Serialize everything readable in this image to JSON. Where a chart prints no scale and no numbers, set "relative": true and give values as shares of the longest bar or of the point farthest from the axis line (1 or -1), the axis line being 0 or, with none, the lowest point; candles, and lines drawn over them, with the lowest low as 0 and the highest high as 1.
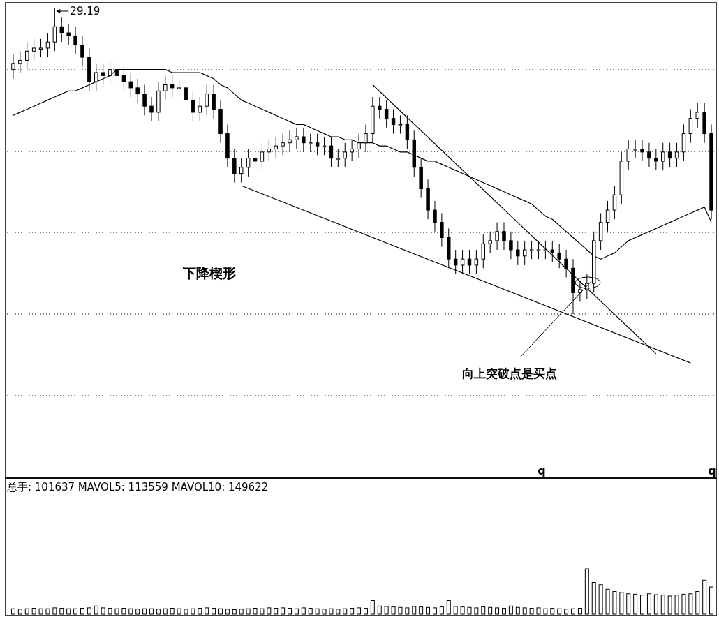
{
  "chart_data": [
    {
      "type": "candlestick",
      "relative": true,
      "grid": true,
      "categories": [
        null,
        null,
        null,
        null,
        null,
        null,
        null,
        null,
        null,
        null,
        null,
        null,
        null,
        null,
        null,
        null,
        null,
        null,
        null,
        null,
        null,
        null,
        null,
        null,
        null,
        null,
        null,
        null,
        null,
        null,
        null,
        null,
        null,
        null,
        null,
        null,
        null,
        null,
        null,
        null,
        null,
        null,
        null,
        null,
        null,
        null,
        null,
        null,
        null,
        null,
        null,
        null,
        null,
        null,
        null,
        null,
        null,
        null,
        null,
        null,
        null,
        null,
        null,
        null,
        null,
        null,
        null,
        null,
        null,
        null,
        null,
        null,
        null,
        null,
        null,
        null,
        null,
        null,
        null,
        null,
        null,
        null,
        null,
        null,
        null,
        null,
        null,
        null,
        null,
        null,
        null,
        null,
        null,
        null,
        null,
        null,
        null,
        null,
        null,
        null,
        null,
        null
      ],
      "ohlc": [
        [
          0.8,
          0.85,
          0.77,
          0.82
        ],
        [
          0.82,
          0.86,
          0.79,
          0.83
        ],
        [
          0.83,
          0.89,
          0.8,
          0.86
        ],
        [
          0.86,
          0.9,
          0.83,
          0.87
        ],
        [
          0.87,
          0.9,
          0.84,
          0.87
        ],
        [
          0.87,
          0.92,
          0.84,
          0.89
        ],
        [
          0.89,
          1.0,
          0.86,
          0.94
        ],
        [
          0.94,
          0.97,
          0.89,
          0.92
        ],
        [
          0.92,
          0.95,
          0.88,
          0.91
        ],
        [
          0.91,
          0.94,
          0.85,
          0.88
        ],
        [
          0.88,
          0.91,
          0.81,
          0.84
        ],
        [
          0.84,
          0.87,
          0.73,
          0.76
        ],
        [
          0.76,
          0.82,
          0.73,
          0.79
        ],
        [
          0.79,
          0.82,
          0.75,
          0.78
        ],
        [
          0.78,
          0.83,
          0.75,
          0.8
        ],
        [
          0.8,
          0.83,
          0.75,
          0.78
        ],
        [
          0.78,
          0.81,
          0.73,
          0.76
        ],
        [
          0.76,
          0.79,
          0.71,
          0.74
        ],
        [
          0.74,
          0.77,
          0.69,
          0.72
        ],
        [
          0.72,
          0.75,
          0.65,
          0.68
        ],
        [
          0.68,
          0.71,
          0.63,
          0.66
        ],
        [
          0.66,
          0.76,
          0.63,
          0.73
        ],
        [
          0.73,
          0.78,
          0.7,
          0.75
        ],
        [
          0.75,
          0.78,
          0.71,
          0.74
        ],
        [
          0.74,
          0.77,
          0.71,
          0.74
        ],
        [
          0.74,
          0.77,
          0.67,
          0.7
        ],
        [
          0.7,
          0.73,
          0.63,
          0.66
        ],
        [
          0.66,
          0.71,
          0.63,
          0.68
        ],
        [
          0.68,
          0.75,
          0.65,
          0.72
        ],
        [
          0.72,
          0.75,
          0.64,
          0.67
        ],
        [
          0.67,
          0.7,
          0.56,
          0.59
        ],
        [
          0.59,
          0.62,
          0.48,
          0.51
        ],
        [
          0.51,
          0.54,
          0.43,
          0.46
        ],
        [
          0.46,
          0.51,
          0.43,
          0.48
        ],
        [
          0.48,
          0.54,
          0.45,
          0.51
        ],
        [
          0.51,
          0.54,
          0.47,
          0.5
        ],
        [
          0.5,
          0.56,
          0.47,
          0.53
        ],
        [
          0.53,
          0.57,
          0.5,
          0.54
        ],
        [
          0.54,
          0.58,
          0.51,
          0.55
        ],
        [
          0.55,
          0.59,
          0.52,
          0.56
        ],
        [
          0.56,
          0.6,
          0.53,
          0.57
        ],
        [
          0.57,
          0.61,
          0.54,
          0.58
        ],
        [
          0.58,
          0.61,
          0.53,
          0.56
        ],
        [
          0.56,
          0.59,
          0.53,
          0.56
        ],
        [
          0.56,
          0.59,
          0.52,
          0.55
        ],
        [
          0.55,
          0.58,
          0.52,
          0.55
        ],
        [
          0.55,
          0.58,
          0.48,
          0.51
        ],
        [
          0.51,
          0.54,
          0.48,
          0.51
        ],
        [
          0.51,
          0.56,
          0.48,
          0.53
        ],
        [
          0.53,
          0.57,
          0.5,
          0.54
        ],
        [
          0.54,
          0.59,
          0.51,
          0.56
        ],
        [
          0.56,
          0.62,
          0.53,
          0.59
        ],
        [
          0.59,
          0.71,
          0.56,
          0.68
        ],
        [
          0.68,
          0.71,
          0.64,
          0.67
        ],
        [
          0.67,
          0.7,
          0.61,
          0.64
        ],
        [
          0.64,
          0.67,
          0.59,
          0.62
        ],
        [
          0.62,
          0.65,
          0.59,
          0.62
        ],
        [
          0.62,
          0.65,
          0.54,
          0.57
        ],
        [
          0.57,
          0.6,
          0.45,
          0.48
        ],
        [
          0.48,
          0.51,
          0.38,
          0.41
        ],
        [
          0.41,
          0.44,
          0.31,
          0.34
        ],
        [
          0.34,
          0.37,
          0.27,
          0.3
        ],
        [
          0.3,
          0.33,
          0.22,
          0.25
        ],
        [
          0.25,
          0.28,
          0.15,
          0.18
        ],
        [
          0.18,
          0.21,
          0.13,
          0.16
        ],
        [
          0.16,
          0.21,
          0.13,
          0.18
        ],
        [
          0.18,
          0.21,
          0.13,
          0.16
        ],
        [
          0.16,
          0.21,
          0.13,
          0.18
        ],
        [
          0.18,
          0.26,
          0.15,
          0.23
        ],
        [
          0.23,
          0.27,
          0.2,
          0.24
        ],
        [
          0.24,
          0.3,
          0.21,
          0.27
        ],
        [
          0.27,
          0.3,
          0.21,
          0.24
        ],
        [
          0.24,
          0.27,
          0.18,
          0.21
        ],
        [
          0.21,
          0.24,
          0.16,
          0.19
        ],
        [
          0.19,
          0.24,
          0.16,
          0.21
        ],
        [
          0.21,
          0.24,
          0.18,
          0.21
        ],
        [
          0.21,
          0.24,
          0.18,
          0.21
        ],
        [
          0.21,
          0.24,
          0.18,
          0.21
        ],
        [
          0.21,
          0.24,
          0.17,
          0.2
        ],
        [
          0.2,
          0.23,
          0.15,
          0.18
        ],
        [
          0.18,
          0.21,
          0.12,
          0.15
        ],
        [
          0.15,
          0.18,
          0.0,
          0.07
        ],
        [
          0.07,
          0.11,
          0.04,
          0.08
        ],
        [
          0.08,
          0.13,
          0.05,
          0.1
        ],
        [
          0.1,
          0.27,
          0.07,
          0.24
        ],
        [
          0.24,
          0.33,
          0.21,
          0.3
        ],
        [
          0.3,
          0.37,
          0.27,
          0.34
        ],
        [
          0.34,
          0.42,
          0.31,
          0.39
        ],
        [
          0.39,
          0.53,
          0.36,
          0.5
        ],
        [
          0.5,
          0.57,
          0.47,
          0.54
        ],
        [
          0.54,
          0.57,
          0.51,
          0.54
        ],
        [
          0.54,
          0.57,
          0.5,
          0.53
        ],
        [
          0.53,
          0.56,
          0.48,
          0.51
        ],
        [
          0.51,
          0.54,
          0.47,
          0.5
        ],
        [
          0.5,
          0.56,
          0.47,
          0.53
        ],
        [
          0.53,
          0.56,
          0.48,
          0.51
        ],
        [
          0.51,
          0.56,
          0.48,
          0.53
        ],
        [
          0.53,
          0.62,
          0.5,
          0.59
        ],
        [
          0.59,
          0.67,
          0.56,
          0.64
        ],
        [
          0.64,
          0.69,
          0.61,
          0.66
        ],
        [
          0.66,
          0.69,
          0.56,
          0.59
        ],
        [
          0.59,
          0.62,
          0.31,
          0.34
        ]
      ],
      "series": [
        {
          "type": "line",
          "color": "#000000",
          "values": [
            0.65,
            0.66,
            0.67,
            0.68,
            0.69,
            0.7,
            0.71,
            0.72,
            0.73,
            0.73,
            0.74,
            0.75,
            0.76,
            0.77,
            0.78,
            0.8,
            0.8,
            0.8,
            0.8,
            0.8,
            0.8,
            0.8,
            0.8,
            0.79,
            0.79,
            0.79,
            0.79,
            0.79,
            0.78,
            0.77,
            0.75,
            0.74,
            0.72,
            0.7,
            0.69,
            0.68,
            0.67,
            0.66,
            0.65,
            0.64,
            0.63,
            0.62,
            0.62,
            0.61,
            0.6,
            0.59,
            0.58,
            0.58,
            0.57,
            0.57,
            0.56,
            0.56,
            0.56,
            0.55,
            0.55,
            0.54,
            0.53,
            0.53,
            0.52,
            0.51,
            0.5,
            0.5,
            0.49,
            0.48,
            0.47,
            0.46,
            0.45,
            0.44,
            0.43,
            0.42,
            0.41,
            0.4,
            0.39,
            0.38,
            0.37,
            0.36,
            0.34,
            0.32,
            0.31,
            0.29,
            0.27,
            0.25,
            0.23,
            0.21,
            0.19,
            0.18,
            0.19,
            0.2,
            0.22,
            0.24,
            0.25,
            0.26,
            0.27,
            0.28,
            0.29,
            0.3,
            0.31,
            0.32,
            0.33,
            0.34,
            0.35,
            0.3
          ]
        },
        {
          "type": "line",
          "color": "#000000",
          "values": [
            null,
            null,
            null,
            null,
            null,
            null,
            null,
            null,
            null,
            null,
            null,
            null,
            null,
            null,
            null,
            null,
            null,
            null,
            null,
            null,
            null,
            null,
            null,
            null,
            null,
            null,
            null,
            null,
            null,
            null,
            null,
            null,
            null,
            null,
            null,
            null,
            null,
            null,
            null,
            null,
            null,
            null,
            null,
            null,
            null,
            null,
            null,
            null,
            null,
            null,
            null,
            null,
            0.75,
            null,
            null,
            null,
            null,
            null,
            null,
            null,
            null,
            null,
            null,
            null,
            null,
            null,
            null,
            null,
            null,
            null,
            null,
            null,
            null,
            null,
            null,
            null,
            null,
            null,
            null,
            null,
            null,
            null,
            null,
            null,
            null,
            null,
            null,
            null,
            null,
            null,
            null,
            null,
            null,
            -0.13,
            null,
            null,
            null,
            null,
            null,
            null,
            null,
            null
          ]
        },
        {
          "type": "line",
          "color": "#000000",
          "values": [
            null,
            null,
            null,
            null,
            null,
            null,
            null,
            null,
            null,
            null,
            null,
            null,
            null,
            null,
            null,
            null,
            null,
            null,
            null,
            null,
            null,
            null,
            null,
            null,
            null,
            null,
            null,
            null,
            null,
            null,
            null,
            null,
            null,
            0.42,
            null,
            null,
            null,
            null,
            null,
            null,
            null,
            null,
            null,
            null,
            null,
            null,
            null,
            null,
            null,
            null,
            null,
            null,
            null,
            null,
            null,
            null,
            null,
            null,
            null,
            null,
            null,
            null,
            null,
            null,
            null,
            null,
            null,
            null,
            null,
            null,
            null,
            null,
            null,
            null,
            null,
            null,
            null,
            null,
            null,
            null,
            null,
            null,
            null,
            null,
            null,
            null,
            null,
            null,
            null,
            null,
            null,
            null,
            null,
            null,
            null,
            null,
            null,
            null,
            -0.16,
            null,
            null,
            null
          ]
        }
      ],
      "annotations": [
        "29.19",
        "下降楔形",
        "向上突破点是买点",
        "q",
        "q"
      ]
    },
    {
      "type": "bar",
      "relative": true,
      "color": "#000000",
      "title": "总手: 101637 MAVOL5: 113559 MAVOL10: 149622",
      "categories": [
        null,
        null,
        null,
        null,
        null,
        null,
        null,
        null,
        null,
        null,
        null,
        null,
        null,
        null,
        null,
        null,
        null,
        null,
        null,
        null,
        null,
        null,
        null,
        null,
        null,
        null,
        null,
        null,
        null,
        null,
        null,
        null,
        null,
        null,
        null,
        null,
        null,
        null,
        null,
        null,
        null,
        null,
        null,
        null,
        null,
        null,
        null,
        null,
        null,
        null,
        null,
        null,
        null,
        null,
        null,
        null,
        null,
        null,
        null,
        null,
        null,
        null,
        null,
        null,
        null,
        null,
        null,
        null,
        null,
        null,
        null,
        null,
        null,
        null,
        null,
        null,
        null,
        null,
        null,
        null,
        null,
        null,
        null,
        null,
        null,
        null,
        null,
        null,
        null,
        null,
        null,
        null,
        null,
        null,
        null,
        null,
        null,
        null,
        null,
        null,
        null,
        null
      ],
      "values": [
        0.12,
        0.11,
        0.12,
        0.13,
        0.12,
        0.12,
        0.14,
        0.13,
        0.12,
        0.12,
        0.13,
        0.14,
        0.18,
        0.14,
        0.13,
        0.12,
        0.13,
        0.12,
        0.11,
        0.12,
        0.12,
        0.11,
        0.12,
        0.13,
        0.12,
        0.11,
        0.12,
        0.13,
        0.14,
        0.13,
        0.12,
        0.11,
        0.1,
        0.11,
        0.12,
        0.13,
        0.12,
        0.14,
        0.13,
        0.14,
        0.13,
        0.12,
        0.14,
        0.13,
        0.12,
        0.11,
        0.12,
        0.11,
        0.12,
        0.13,
        0.14,
        0.13,
        0.3,
        0.18,
        0.17,
        0.16,
        0.15,
        0.14,
        0.17,
        0.16,
        0.15,
        0.14,
        0.16,
        0.3,
        0.17,
        0.16,
        0.15,
        0.14,
        0.16,
        0.15,
        0.14,
        0.13,
        0.18,
        0.15,
        0.14,
        0.13,
        0.14,
        0.12,
        0.13,
        0.12,
        0.11,
        0.12,
        0.13,
        1.0,
        0.7,
        0.65,
        0.55,
        0.5,
        0.48,
        0.45,
        0.44,
        0.42,
        0.45,
        0.43,
        0.42,
        0.4,
        0.42,
        0.44,
        0.45,
        0.5,
        0.75,
        0.6
      ]
    }
  ]
}
